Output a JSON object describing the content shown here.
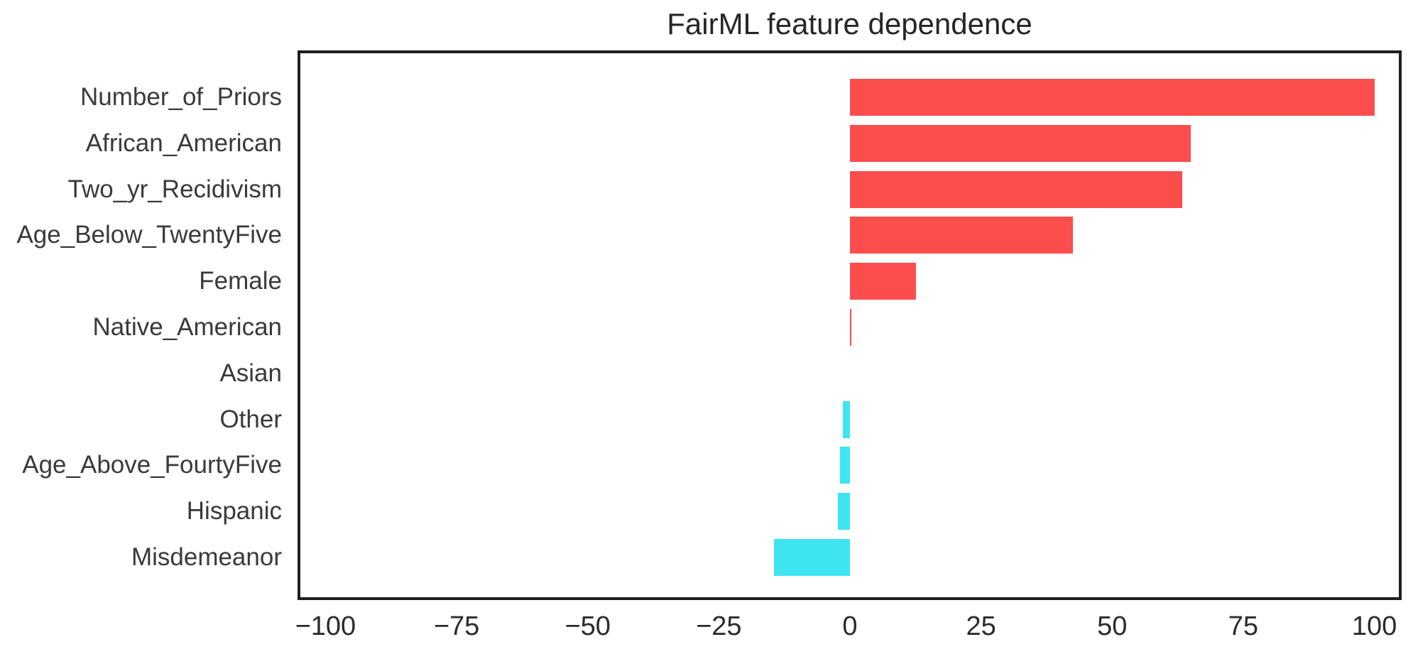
{
  "chart_data": {
    "type": "bar",
    "orientation": "horizontal",
    "title": "FairML feature dependence",
    "categories": [
      "Number_of_Priors",
      "African_American",
      "Two_yr_Recidivism",
      "Age_Below_TwentyFive",
      "Female",
      "Native_American",
      "Asian",
      "Other",
      "Age_Above_FourtyFive",
      "Hispanic",
      "Misdemeanor"
    ],
    "values": [
      100,
      65,
      63.4,
      42.5,
      12.6,
      0.3,
      0,
      -1.4,
      -1.9,
      -2.3,
      -14.5
    ],
    "xlabel": "",
    "ylabel": "",
    "xlim": [
      -105,
      105
    ],
    "xtick_values": [
      -100,
      -75,
      -50,
      -25,
      0,
      25,
      50,
      75,
      100
    ],
    "xtick_labels": [
      "−100",
      "−75",
      "−50",
      "−25",
      "0",
      "25",
      "50",
      "75",
      "100"
    ],
    "grid": false,
    "legend": "none",
    "positive_color": "#fc4d4d",
    "negative_color": "#3ee5f1",
    "axis_color": "#1f1f1f",
    "background_color": "#ffffff"
  }
}
